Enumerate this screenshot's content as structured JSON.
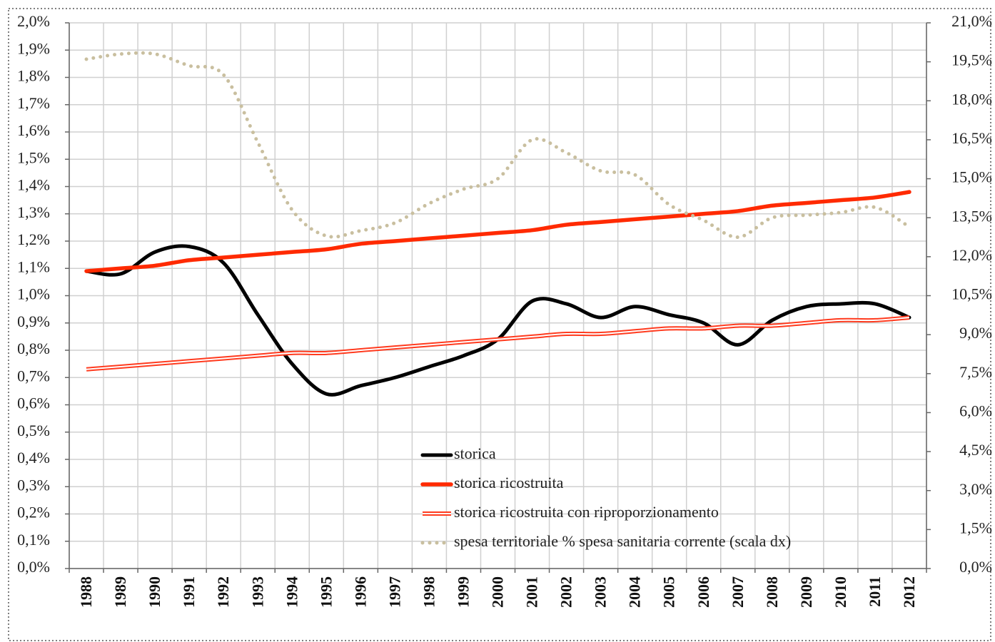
{
  "chart_data": {
    "type": "line",
    "categories": [
      "1988",
      "1989",
      "1990",
      "1991",
      "1992",
      "1993",
      "1994",
      "1995",
      "1996",
      "1997",
      "1998",
      "1999",
      "2000",
      "2001",
      "2002",
      "2003",
      "2004",
      "2005",
      "2006",
      "2007",
      "2008",
      "2009",
      "2010",
      "2011",
      "2012"
    ],
    "series": [
      {
        "name": "storica",
        "color": "#000000",
        "style": "solid",
        "axis": "y",
        "values": [
          1.09,
          1.08,
          1.16,
          1.18,
          1.12,
          0.93,
          0.75,
          0.64,
          0.67,
          0.7,
          0.74,
          0.78,
          0.84,
          0.98,
          0.97,
          0.92,
          0.96,
          0.93,
          0.9,
          0.82,
          0.91,
          0.96,
          0.97,
          0.97,
          0.92
        ]
      },
      {
        "name": "storica ricostruita",
        "color": "#ff2a00",
        "style": "solid",
        "axis": "y",
        "values": [
          1.09,
          1.1,
          1.11,
          1.13,
          1.14,
          1.15,
          1.16,
          1.17,
          1.19,
          1.2,
          1.21,
          1.22,
          1.23,
          1.24,
          1.26,
          1.27,
          1.28,
          1.29,
          1.3,
          1.31,
          1.33,
          1.34,
          1.35,
          1.36,
          1.38
        ]
      },
      {
        "name": "storica ricostruita con riproporzionamento",
        "color": "#ff3b1f",
        "style": "double",
        "axis": "y",
        "values": [
          0.73,
          0.74,
          0.75,
          0.76,
          0.77,
          0.78,
          0.79,
          0.79,
          0.8,
          0.81,
          0.82,
          0.83,
          0.84,
          0.85,
          0.86,
          0.86,
          0.87,
          0.88,
          0.88,
          0.89,
          0.89,
          0.9,
          0.91,
          0.91,
          0.92
        ]
      },
      {
        "name": "spesa territoriale % spesa sanitaria corrente (scala dx)",
        "color": "#c9bf9f",
        "style": "dotted",
        "axis": "y2",
        "values": [
          19.6,
          19.8,
          19.8,
          19.35,
          19.0,
          16.4,
          13.8,
          12.8,
          13.0,
          13.3,
          14.05,
          14.6,
          15.0,
          16.5,
          16.0,
          15.3,
          15.15,
          14.0,
          13.4,
          12.75,
          13.5,
          13.6,
          13.7,
          13.9,
          13.15
        ]
      }
    ],
    "ylim": [
      0,
      2.0
    ],
    "yticks": [
      {
        "value": 0,
        "label": "0,0%"
      },
      {
        "value": 0.1,
        "label": "0,1%"
      },
      {
        "value": 0.2,
        "label": "0,2%"
      },
      {
        "value": 0.3,
        "label": "0,3%"
      },
      {
        "value": 0.4,
        "label": "0,4%"
      },
      {
        "value": 0.5,
        "label": "0,5%"
      },
      {
        "value": 0.6,
        "label": "0,6%"
      },
      {
        "value": 0.7,
        "label": "0,7%"
      },
      {
        "value": 0.8,
        "label": "0,8%"
      },
      {
        "value": 0.9,
        "label": "0,9%"
      },
      {
        "value": 1.0,
        "label": "1,0%"
      },
      {
        "value": 1.1,
        "label": "1,1%"
      },
      {
        "value": 1.2,
        "label": "1,2%"
      },
      {
        "value": 1.3,
        "label": "1,3%"
      },
      {
        "value": 1.4,
        "label": "1,4%"
      },
      {
        "value": 1.5,
        "label": "1,5%"
      },
      {
        "value": 1.6,
        "label": "1,6%"
      },
      {
        "value": 1.7,
        "label": "1,7%"
      },
      {
        "value": 1.8,
        "label": "1,8%"
      },
      {
        "value": 1.9,
        "label": "1,9%"
      },
      {
        "value": 2.0,
        "label": "2,0%"
      }
    ],
    "y2lim": [
      0,
      21.0
    ],
    "y2ticks": [
      {
        "value": 0,
        "label": "0,0%"
      },
      {
        "value": 1.5,
        "label": "1,5%"
      },
      {
        "value": 3.0,
        "label": "3,0%"
      },
      {
        "value": 4.5,
        "label": "4,5%"
      },
      {
        "value": 6.0,
        "label": "6,0%"
      },
      {
        "value": 7.5,
        "label": "7,5%"
      },
      {
        "value": 9.0,
        "label": "9,0%"
      },
      {
        "value": 10.5,
        "label": "10,5%"
      },
      {
        "value": 12.0,
        "label": "12,0%"
      },
      {
        "value": 13.5,
        "label": "13,5%"
      },
      {
        "value": 15.0,
        "label": "15,0%"
      },
      {
        "value": 16.5,
        "label": "16,5%"
      },
      {
        "value": 18.0,
        "label": "18,0%"
      },
      {
        "value": 19.5,
        "label": "19,5%"
      },
      {
        "value": 21.0,
        "label": "21,0%"
      }
    ],
    "grid": true,
    "legend": "bottom"
  }
}
